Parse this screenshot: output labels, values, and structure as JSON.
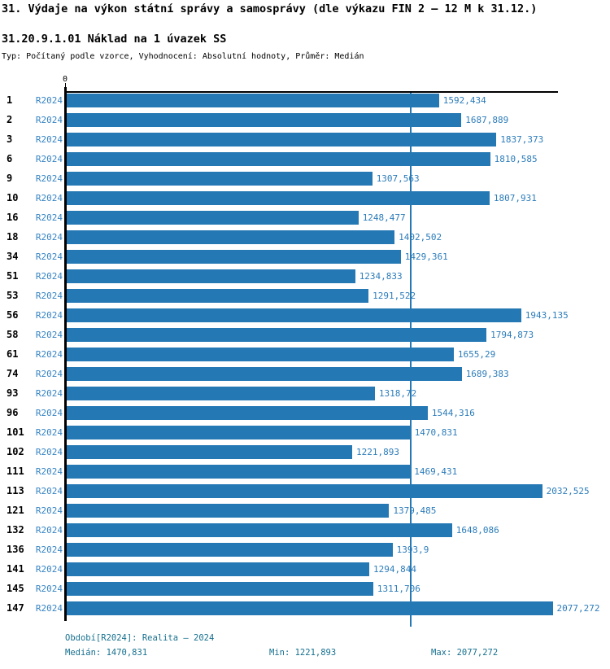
{
  "header": {
    "title": "31. Výdaje na výkon státní správy a samosprávy (dle výkazu FIN 2 – 12 M k 31.12.)",
    "subtitle": "31.20.9.1.01 Náklad na 1 úvazek SS",
    "type_line": "Typ: Počítaný podle vzorce, Vyhodnocení: Absolutní hodnoty, Průměr: Medián"
  },
  "colors": {
    "bar": "#2478b4",
    "median_line": "#2478b4",
    "period_label": "#3583c3",
    "value_label": "#2c7cba",
    "footer_text": "#17708f",
    "axis": "#000000"
  },
  "chart_data": {
    "type": "bar",
    "orientation": "horizontal",
    "title": "31. Výdaje na výkon státní správy a samosprávy (dle výkazu FIN 2 – 12 M k 31.12.)",
    "subtitle": "31.20.9.1.01 Náklad na 1 úvazek SS",
    "xlabel": "",
    "ylabel": "",
    "xlim": [
      0,
      2100
    ],
    "grid": false,
    "legend_position": "none",
    "zero_label": "0",
    "median_reference_line": 1470.831,
    "categories": [
      "1",
      "2",
      "3",
      "6",
      "9",
      "10",
      "16",
      "18",
      "34",
      "51",
      "53",
      "56",
      "58",
      "61",
      "74",
      "93",
      "96",
      "101",
      "102",
      "111",
      "113",
      "121",
      "132",
      "136",
      "141",
      "145",
      "147"
    ],
    "series": [
      {
        "name": "R2024",
        "values": [
          1592.434,
          1687.889,
          1837.373,
          1810.585,
          1307.563,
          1807.931,
          1248.477,
          1402.502,
          1429.361,
          1234.833,
          1291.522,
          1943.135,
          1794.873,
          1655.29,
          1689.383,
          1318.72,
          1544.316,
          1470.831,
          1221.893,
          1469.431,
          2032.525,
          1379.485,
          1648.086,
          1393.9,
          1294.844,
          1311.706,
          2077.272
        ]
      }
    ],
    "value_labels": [
      "1592,434",
      "1687,889",
      "1837,373",
      "1810,585",
      "1307,563",
      "1807,931",
      "1248,477",
      "1402,502",
      "1429,361",
      "1234,833",
      "1291,522",
      "1943,135",
      "1794,873",
      "1655,29",
      "1689,383",
      "1318,72",
      "1544,316",
      "1470,831",
      "1221,893",
      "1469,431",
      "2032,525",
      "1379,485",
      "1648,086",
      "1393,9",
      "1294,844",
      "1311,706",
      "2077,272"
    ]
  },
  "footer": {
    "period_line": "Období[R2024]: Realita – 2024",
    "median": "Medián: 1470,831",
    "min": "Min: 1221,893",
    "max": "Max: 2077,272"
  }
}
